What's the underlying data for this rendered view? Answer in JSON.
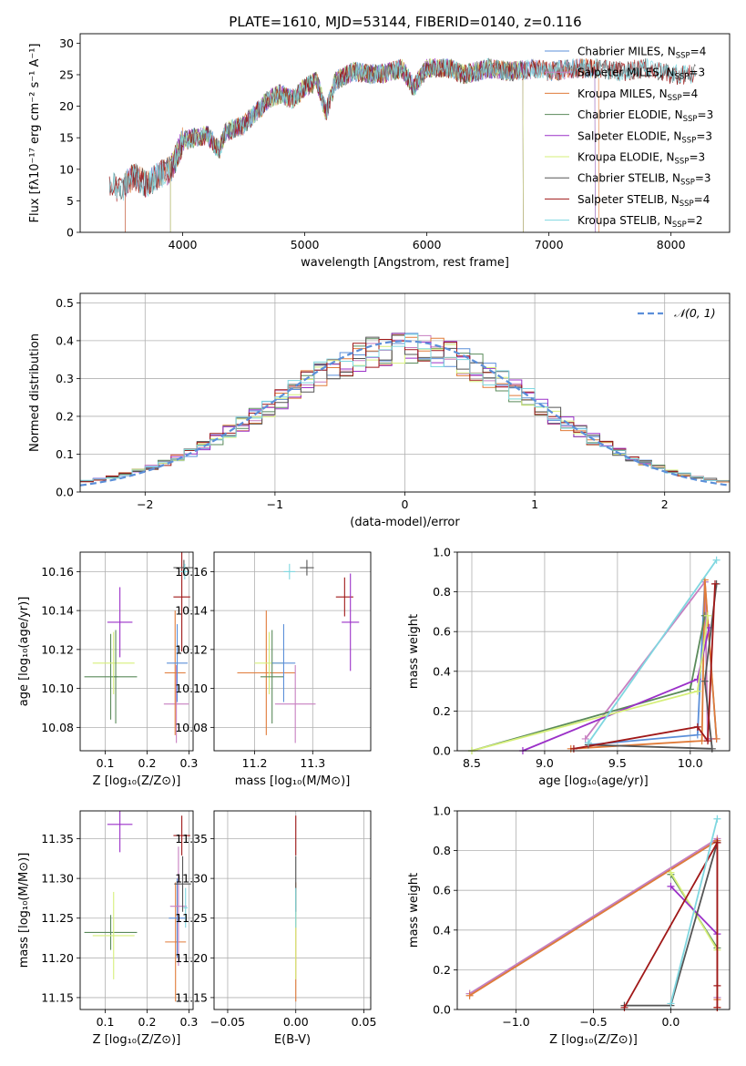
{
  "figure_title": "PLATE=1610, MJD=53144, FIBERID=0140, z=0.116",
  "colors": {
    "chabrier_miles": "#5b8fd9",
    "salpeter_miles": "#c77fc0",
    "kroupa_miles": "#e07b39",
    "chabrier_elodie": "#5a8a5a",
    "salpeter_elodie": "#9b30c8",
    "kroupa_elodie": "#d6ef7a",
    "chabrier_stelib": "#555555",
    "salpeter_stelib": "#a01818",
    "kroupa_stelib": "#7fd7e0",
    "gaussian": "#5b8fd9"
  },
  "chart_data": [
    {
      "id": "spectrum",
      "type": "line",
      "title": "PLATE=1610, MJD=53144, FIBERID=0140, z=0.116",
      "xlabel": "wavelength [Angstrom, rest frame]",
      "ylabel": "Flux [fλ10⁻¹⁷ erg cm⁻² s⁻¹ A⁻¹]",
      "xlim": [
        3160,
        8480
      ],
      "ylim": [
        0,
        31.5
      ],
      "xticks": [
        4000,
        5000,
        6000,
        7000,
        8000
      ],
      "yticks": [
        0,
        5,
        10,
        15,
        20,
        25,
        30
      ],
      "grid": false,
      "legend_position": "right",
      "envelope": [
        [
          3400,
          7.5
        ],
        [
          3500,
          6.8
        ],
        [
          3600,
          9
        ],
        [
          3700,
          7.5
        ],
        [
          3800,
          9
        ],
        [
          3900,
          10
        ],
        [
          3950,
          12
        ],
        [
          4000,
          14.5
        ],
        [
          4100,
          15
        ],
        [
          4200,
          15.5
        ],
        [
          4300,
          13
        ],
        [
          4350,
          16
        ],
        [
          4500,
          17
        ],
        [
          4700,
          21
        ],
        [
          4800,
          22
        ],
        [
          4900,
          21
        ],
        [
          5000,
          23
        ],
        [
          5100,
          24
        ],
        [
          5175,
          19
        ],
        [
          5250,
          24
        ],
        [
          5400,
          25.5
        ],
        [
          5600,
          25
        ],
        [
          5800,
          26
        ],
        [
          5890,
          23
        ],
        [
          6000,
          26
        ],
        [
          6200,
          26
        ],
        [
          6300,
          25
        ],
        [
          6500,
          26
        ],
        [
          6700,
          25.5
        ],
        [
          6900,
          26
        ],
        [
          7000,
          25.5
        ],
        [
          7200,
          26
        ],
        [
          7400,
          26
        ],
        [
          7600,
          25.5
        ],
        [
          7800,
          26
        ],
        [
          8000,
          25
        ],
        [
          8200,
          25
        ]
      ],
      "series": [
        {
          "name": "Chabrier MILES, N_SSP=4",
          "label_main": "Chabrier MILES, N",
          "label_sub": "SSP",
          "label_tail": "=4",
          "color": "#5b8fd9",
          "cutoffs": [
            3530,
            7380
          ]
        },
        {
          "name": "Salpeter MILES, N_SSP=3",
          "label_main": "Salpeter MILES, N",
          "label_sub": "SSP",
          "label_tail": "=3",
          "color": "#c77fc0",
          "cutoffs": [
            3530,
            7380
          ]
        },
        {
          "name": "Kroupa MILES, N_SSP=4",
          "label_main": "Kroupa MILES, N",
          "label_sub": "SSP",
          "label_tail": "=4",
          "color": "#e07b39",
          "cutoffs": [
            3530,
            7410
          ]
        },
        {
          "name": "Chabrier ELODIE, N_SSP=3",
          "label_main": "Chabrier ELODIE, N",
          "label_sub": "SSP",
          "label_tail": "=3",
          "color": "#5a8a5a",
          "cutoffs": [
            3900,
            6790
          ]
        },
        {
          "name": "Salpeter ELODIE, N_SSP=3",
          "label_main": "Salpeter ELODIE, N",
          "label_sub": "SSP",
          "label_tail": "=3",
          "color": "#9b30c8",
          "cutoffs": [
            3900,
            6790
          ]
        },
        {
          "name": "Kroupa ELODIE, N_SSP=3",
          "label_main": "Kroupa ELODIE, N",
          "label_sub": "SSP",
          "label_tail": "=3",
          "color": "#d6ef7a",
          "cutoffs": [
            3900,
            6790
          ]
        },
        {
          "name": "Chabrier STELIB, N_SSP=3",
          "label_main": "Chabrier STELIB, N",
          "label_sub": "SSP",
          "label_tail": "=3",
          "color": "#555555",
          "cutoffs": [
            3400,
            8200
          ]
        },
        {
          "name": "Salpeter STELIB, N_SSP=4",
          "label_main": "Salpeter STELIB, N",
          "label_sub": "SSP",
          "label_tail": "=4",
          "color": "#a01818",
          "cutoffs": [
            3400,
            8200
          ]
        },
        {
          "name": "Kroupa STELIB, N_SSP=2",
          "label_main": "Kroupa STELIB, N",
          "label_sub": "SSP",
          "label_tail": "=2",
          "color": "#7fd7e0",
          "cutoffs": [
            3400,
            8200
          ]
        }
      ]
    },
    {
      "id": "residuals",
      "type": "bar",
      "xlabel": "(data-model)/error",
      "ylabel": "Normed distribution",
      "xlim": [
        -2.5,
        2.5
      ],
      "ylim": [
        0,
        0.525
      ],
      "xticks": [
        -2,
        -1,
        0,
        1,
        2
      ],
      "yticks": [
        0.0,
        0.1,
        0.2,
        0.3,
        0.4,
        0.5
      ],
      "grid": true,
      "legend_position": "top-right",
      "legend_label": "𝒩(0, 1)",
      "bin_width": 0.1,
      "reference_curve": "normal(0,1)"
    },
    {
      "id": "age_vs_Z",
      "type": "scatter",
      "xlabel": "Z [log₁₀(Z/Z⊙)]",
      "ylabel": "age  [log₁₀(age/yr)]",
      "xlim": [
        0.04,
        0.31
      ],
      "ylim": [
        10.068,
        10.17
      ],
      "xticks": [
        0.1,
        0.2,
        0.3
      ],
      "yticks": [
        10.08,
        10.1,
        10.12,
        10.14,
        10.16
      ],
      "grid": true,
      "points": [
        {
          "x": 0.113,
          "y": 10.106,
          "xerr": 0.063,
          "yerr": 0.022,
          "color": "#5a8a5a"
        },
        {
          "x": 0.12,
          "y": 10.113,
          "xerr": 0.05,
          "yerr": 0.016,
          "color": "#d6ef7a"
        },
        {
          "x": 0.125,
          "y": 10.106,
          "xerr": 0.005,
          "yerr": 0.024,
          "color": "#5a8a5a"
        },
        {
          "x": 0.135,
          "y": 10.134,
          "xerr": 0.03,
          "yerr": 0.018,
          "color": "#9b30c8"
        },
        {
          "x": 0.27,
          "y": 10.092,
          "xerr": 0.03,
          "yerr": 0.02,
          "color": "#c77fc0"
        },
        {
          "x": 0.267,
          "y": 10.108,
          "xerr": 0.025,
          "yerr": 0.032,
          "color": "#e07b39"
        },
        {
          "x": 0.272,
          "y": 10.113,
          "xerr": 0.025,
          "yerr": 0.02,
          "color": "#5b8fd9"
        },
        {
          "x": 0.283,
          "y": 10.147,
          "xerr": 0.02,
          "yerr": 0.028,
          "color": "#a01818"
        },
        {
          "x": 0.288,
          "y": 10.162,
          "xerr": 0.025,
          "yerr": 0.004,
          "color": "#555555"
        },
        {
          "x": 0.29,
          "y": 10.16,
          "xerr": 0.01,
          "yerr": 0.004,
          "color": "#7fd7e0"
        }
      ]
    },
    {
      "id": "age_vs_mass",
      "type": "scatter",
      "xlabel": "mass [log₁₀(M/M⊙)]",
      "ylabel": "",
      "xlim": [
        11.13,
        11.4
      ],
      "ylim": [
        10.068,
        10.17
      ],
      "xticks": [
        11.2,
        11.3
      ],
      "yticks": [
        10.08,
        10.1,
        10.12,
        10.14,
        10.16
      ],
      "grid": true,
      "points": [
        {
          "x": 11.22,
          "y": 10.108,
          "xerr": 0.05,
          "yerr": 0.032,
          "color": "#e07b39"
        },
        {
          "x": 11.225,
          "y": 10.113,
          "xerr": 0.025,
          "yerr": 0.016,
          "color": "#d6ef7a"
        },
        {
          "x": 11.23,
          "y": 10.106,
          "xerr": 0.02,
          "yerr": 0.024,
          "color": "#5a8a5a"
        },
        {
          "x": 11.25,
          "y": 10.113,
          "xerr": 0.02,
          "yerr": 0.02,
          "color": "#5b8fd9"
        },
        {
          "x": 11.26,
          "y": 10.16,
          "xerr": 0.01,
          "yerr": 0.004,
          "color": "#7fd7e0"
        },
        {
          "x": 11.29,
          "y": 10.162,
          "xerr": 0.012,
          "yerr": 0.004,
          "color": "#555555"
        },
        {
          "x": 11.27,
          "y": 10.092,
          "xerr": 0.035,
          "yerr": 0.02,
          "color": "#c77fc0"
        },
        {
          "x": 11.355,
          "y": 10.147,
          "xerr": 0.015,
          "yerr": 0.01,
          "color": "#a01818"
        },
        {
          "x": 11.365,
          "y": 10.134,
          "xerr": 0.015,
          "yerr": 0.025,
          "color": "#9b30c8"
        }
      ]
    },
    {
      "id": "massweight_vs_age",
      "type": "line",
      "xlabel": "age  [log₁₀(age/yr)]",
      "ylabel": "mass weight",
      "xlim": [
        8.4,
        10.27
      ],
      "ylim": [
        0,
        1.0
      ],
      "xticks": [
        8.5,
        9.0,
        9.5,
        10.0
      ],
      "yticks": [
        0.0,
        0.2,
        0.4,
        0.6,
        0.8,
        1.0
      ],
      "grid": true,
      "series": [
        {
          "color": "#5b8fd9",
          "points": [
            [
              9.3,
              0.03
            ],
            [
              10.05,
              0.08
            ],
            [
              10.1,
              0.85
            ],
            [
              10.18,
              0.06
            ]
          ]
        },
        {
          "color": "#c77fc0",
          "points": [
            [
              9.28,
              0.06
            ],
            [
              10.1,
              0.85
            ],
            [
              10.12,
              0.06
            ],
            [
              10.18,
              0.06
            ]
          ]
        },
        {
          "color": "#e07b39",
          "points": [
            [
              9.18,
              0.01
            ],
            [
              10.08,
              0.05
            ],
            [
              10.1,
              0.86
            ],
            [
              10.18,
              0.06
            ]
          ]
        },
        {
          "color": "#5a8a5a",
          "points": [
            [
              8.5,
              0.0
            ],
            [
              10.0,
              0.31
            ],
            [
              10.1,
              0.68
            ]
          ]
        },
        {
          "color": "#9b30c8",
          "points": [
            [
              8.85,
              0.0
            ],
            [
              10.05,
              0.36
            ],
            [
              10.13,
              0.62
            ]
          ]
        },
        {
          "color": "#d6ef7a",
          "points": [
            [
              8.5,
              0.0
            ],
            [
              10.05,
              0.3
            ],
            [
              10.12,
              0.68
            ]
          ]
        },
        {
          "color": "#555555",
          "points": [
            [
              9.3,
              0.03
            ],
            [
              10.15,
              0.01
            ],
            [
              10.1,
              0.35
            ],
            [
              10.18,
              0.84
            ]
          ]
        },
        {
          "color": "#a01818",
          "points": [
            [
              9.2,
              0.01
            ],
            [
              10.05,
              0.12
            ],
            [
              10.12,
              0.05
            ],
            [
              10.17,
              0.84
            ]
          ]
        },
        {
          "color": "#7fd7e0",
          "points": [
            [
              9.3,
              0.04
            ],
            [
              10.18,
              0.96
            ]
          ]
        }
      ]
    },
    {
      "id": "mass_vs_Z",
      "type": "scatter",
      "xlabel": "Z [log₁₀(Z/Z⊙)]",
      "ylabel": "mass [log₁₀(M/M⊙)]",
      "xlim": [
        0.04,
        0.31
      ],
      "ylim": [
        11.135,
        11.385
      ],
      "xticks": [
        0.1,
        0.2,
        0.3
      ],
      "yticks": [
        11.15,
        11.2,
        11.25,
        11.3,
        11.35
      ],
      "grid": true,
      "points": [
        {
          "x": 0.113,
          "y": 11.232,
          "xerr": 0.063,
          "yerr": 0.022,
          "color": "#5a8a5a"
        },
        {
          "x": 0.12,
          "y": 11.228,
          "xerr": 0.05,
          "yerr": 0.055,
          "color": "#d6ef7a"
        },
        {
          "x": 0.135,
          "y": 11.368,
          "xerr": 0.03,
          "yerr": 0.035,
          "color": "#9b30c8"
        },
        {
          "x": 0.268,
          "y": 11.22,
          "xerr": 0.025,
          "yerr": 0.075,
          "color": "#e07b39"
        },
        {
          "x": 0.272,
          "y": 11.25,
          "xerr": 0.02,
          "yerr": 0.05,
          "color": "#5b8fd9"
        },
        {
          "x": 0.275,
          "y": 11.265,
          "xerr": 0.02,
          "yerr": 0.075,
          "color": "#c77fc0"
        },
        {
          "x": 0.283,
          "y": 11.354,
          "xerr": 0.02,
          "yerr": 0.025,
          "color": "#a01818"
        },
        {
          "x": 0.285,
          "y": 11.293,
          "xerr": 0.02,
          "yerr": 0.035,
          "color": "#555555"
        },
        {
          "x": 0.292,
          "y": 11.263,
          "xerr": 0.005,
          "yerr": 0.025,
          "color": "#7fd7e0"
        }
      ]
    },
    {
      "id": "mass_vs_ebv",
      "type": "scatter",
      "xlabel": "E(B-V)",
      "ylabel": "",
      "xlim": [
        -0.06,
        0.055
      ],
      "ylim": [
        11.135,
        11.385
      ],
      "xticks": [
        -0.05,
        0.0,
        0.05
      ],
      "yticks": [
        11.15,
        11.2,
        11.25,
        11.3,
        11.35
      ],
      "grid": true,
      "points": [
        {
          "x": 0.0,
          "y": 11.22,
          "xerr": 0.0,
          "yerr": 0.075,
          "color": "#e07b39"
        },
        {
          "x": 0.0,
          "y": 11.228,
          "xerr": 0.0,
          "yerr": 0.055,
          "color": "#d6ef7a"
        },
        {
          "x": 0.0,
          "y": 11.293,
          "xerr": 0.0,
          "yerr": 0.035,
          "color": "#555555"
        },
        {
          "x": 0.0,
          "y": 11.263,
          "xerr": 0.0,
          "yerr": 0.025,
          "color": "#7fd7e0"
        },
        {
          "x": 0.0,
          "y": 11.354,
          "xerr": 0.0,
          "yerr": 0.025,
          "color": "#a01818"
        }
      ]
    },
    {
      "id": "massweight_vs_Z",
      "type": "line",
      "xlabel": "Z [log₁₀(Z/Z⊙)]",
      "ylabel": "mass weight",
      "xlim": [
        -1.38,
        0.38
      ],
      "ylim": [
        0,
        1.0
      ],
      "xticks": [
        -1.0,
        -0.5,
        0.0
      ],
      "yticks": [
        0.0,
        0.2,
        0.4,
        0.6,
        0.8,
        1.0
      ],
      "grid": true,
      "series": [
        {
          "color": "#5b8fd9",
          "points": [
            [
              -1.3,
              0.08
            ],
            [
              0.3,
              0.85
            ],
            [
              0.3,
              0.06
            ]
          ]
        },
        {
          "color": "#c77fc0",
          "points": [
            [
              -1.3,
              0.08
            ],
            [
              0.3,
              0.86
            ],
            [
              0.3,
              0.06
            ]
          ]
        },
        {
          "color": "#e07b39",
          "points": [
            [
              -1.3,
              0.07
            ],
            [
              0.3,
              0.85
            ],
            [
              0.3,
              0.05
            ],
            [
              0.3,
              0.01
            ]
          ]
        },
        {
          "color": "#5a8a5a",
          "points": [
            [
              0.0,
              0.68
            ],
            [
              0.3,
              0.31
            ]
          ]
        },
        {
          "color": "#d6ef7a",
          "points": [
            [
              0.0,
              0.69
            ],
            [
              0.3,
              0.3
            ]
          ]
        },
        {
          "color": "#9b30c8",
          "points": [
            [
              0.0,
              0.62
            ],
            [
              0.3,
              0.38
            ]
          ]
        },
        {
          "color": "#555555",
          "points": [
            [
              -0.3,
              0.02
            ],
            [
              0.0,
              0.02
            ],
            [
              0.3,
              0.84
            ]
          ]
        },
        {
          "color": "#a01818",
          "points": [
            [
              -0.3,
              0.01
            ],
            [
              0.3,
              0.84
            ],
            [
              0.3,
              0.12
            ],
            [
              0.3,
              0.01
            ]
          ]
        },
        {
          "color": "#7fd7e0",
          "points": [
            [
              0.0,
              0.03
            ],
            [
              0.3,
              0.96
            ]
          ]
        }
      ]
    }
  ]
}
